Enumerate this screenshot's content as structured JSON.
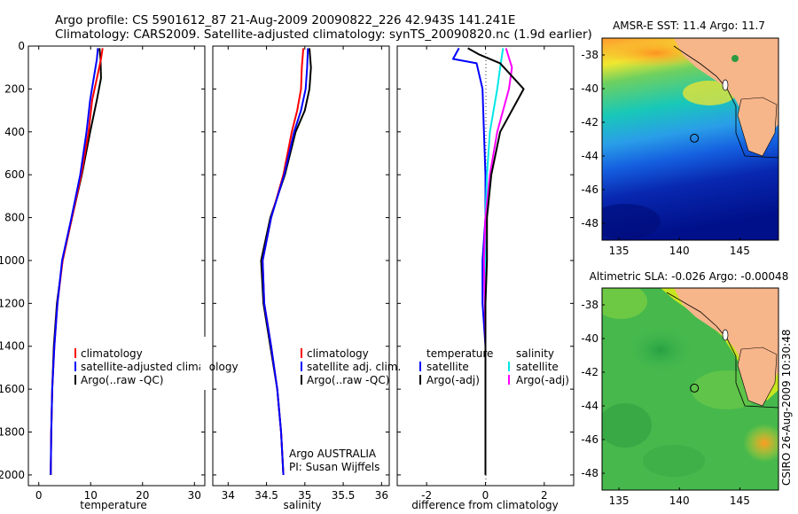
{
  "header": {
    "line1": "Argo profile: CS 5901612_87 21-Aug-2009 20090822_226 42.943S 141.241E",
    "line2": "Climatology: CARS2009. Satellite-adjusted climatology: synTS_20090820.nc (1.9d earlier)"
  },
  "colors": {
    "climatology": "#ff0000",
    "satellite": "#0000ff",
    "argo": "#000000",
    "satellite_diff": "#00e6e6",
    "argo_diff": "#ff00ff",
    "land": "#f7b58a"
  },
  "panels": {
    "temperature": {
      "xlabel": "temperature",
      "legend": [
        "climatology",
        "satellite-adjusted climatology",
        "Argo(..raw -QC)"
      ]
    },
    "salinity": {
      "xlabel": "salinity",
      "legend": [
        "climatology",
        "satellite adj. clim.",
        "Argo(..raw -QC)"
      ],
      "annotation": [
        "Argo AUSTRALIA",
        "PI: Susan Wijffels"
      ]
    },
    "difference": {
      "xlabel": "difference from climatology",
      "legend_left_title": "temperature",
      "legend_left": [
        "satellite",
        "Argo(-adj)"
      ],
      "legend_right_title": "salinity",
      "legend_right": [
        "satellite",
        "Argo(-adj)"
      ]
    }
  },
  "maps": {
    "sst_title": "AMSR-E SST: 11.4 Argo: 11.7",
    "sla_title": "Altimetric SLA: -0.026 Argo: -0.00048",
    "yticks": [
      "-38",
      "-40",
      "-42",
      "-44",
      "-46",
      "-48"
    ],
    "xticks": [
      "135",
      "140",
      "145"
    ],
    "float_position": {
      "lon": 141.241,
      "lat": -42.943
    }
  },
  "credit": "CSIRO 26-Aug-2009 10:30:48",
  "chart_data": [
    {
      "type": "line",
      "title": "",
      "xlabel": "temperature",
      "ylabel": "",
      "xlim": [
        -2,
        32
      ],
      "ylim": [
        2050,
        0
      ],
      "xticks": [
        0,
        10,
        20,
        30
      ],
      "yticks": [
        0,
        200,
        400,
        600,
        800,
        1000,
        1200,
        1400,
        1600,
        1800,
        2000
      ],
      "series": [
        {
          "name": "climatology",
          "points": [
            [
              12.3,
              10
            ],
            [
              12.0,
              60
            ],
            [
              11.2,
              150
            ],
            [
              10.3,
              250
            ],
            [
              9.6,
              400
            ],
            [
              8.2,
              600
            ],
            [
              6.4,
              800
            ],
            [
              4.6,
              1000
            ],
            [
              3.6,
              1200
            ],
            [
              3.0,
              1400
            ],
            [
              2.6,
              1600
            ],
            [
              2.4,
              1800
            ],
            [
              2.3,
              2000
            ]
          ]
        },
        {
          "name": "satellite-adjusted climatology",
          "points": [
            [
              11.4,
              10
            ],
            [
              11.2,
              60
            ],
            [
              10.6,
              150
            ],
            [
              9.9,
              250
            ],
            [
              9.2,
              400
            ],
            [
              8.0,
              600
            ],
            [
              6.3,
              800
            ],
            [
              4.5,
              1000
            ],
            [
              3.6,
              1200
            ],
            [
              3.0,
              1400
            ],
            [
              2.6,
              1600
            ],
            [
              2.4,
              1800
            ],
            [
              2.3,
              2000
            ]
          ]
        },
        {
          "name": "Argo(..raw -QC)",
          "points": [
            [
              11.7,
              10
            ],
            [
              11.9,
              60
            ],
            [
              12.0,
              150
            ],
            [
              11.2,
              250
            ],
            [
              9.9,
              400
            ],
            [
              8.3,
              600
            ],
            [
              6.4,
              800
            ],
            [
              4.6,
              1000
            ],
            [
              3.5,
              1200
            ],
            [
              2.9,
              1400
            ],
            [
              2.6,
              1600
            ],
            [
              2.4,
              1800
            ],
            [
              2.3,
              2000
            ]
          ]
        }
      ]
    },
    {
      "type": "line",
      "title": "",
      "xlabel": "salinity",
      "ylabel": "",
      "xlim": [
        33.8,
        36.1
      ],
      "ylim": [
        2050,
        0
      ],
      "xticks": [
        34,
        34.5,
        35,
        35.5,
        36
      ],
      "yticks": [
        0,
        200,
        400,
        600,
        800,
        1000,
        1200,
        1400,
        1600,
        1800,
        2000
      ],
      "series": [
        {
          "name": "climatology",
          "points": [
            [
              34.98,
              10
            ],
            [
              34.96,
              100
            ],
            [
              34.95,
              200
            ],
            [
              34.9,
              300
            ],
            [
              34.83,
              400
            ],
            [
              34.72,
              600
            ],
            [
              34.56,
              800
            ],
            [
              34.45,
              1000
            ],
            [
              34.47,
              1200
            ],
            [
              34.56,
              1400
            ],
            [
              34.64,
              1600
            ],
            [
              34.69,
              1800
            ],
            [
              34.72,
              2000
            ]
          ]
        },
        {
          "name": "satellite adj. clim.",
          "points": [
            [
              35.04,
              10
            ],
            [
              35.03,
              100
            ],
            [
              35.01,
              200
            ],
            [
              34.95,
              300
            ],
            [
              34.86,
              400
            ],
            [
              34.73,
              600
            ],
            [
              34.56,
              800
            ],
            [
              34.45,
              1000
            ],
            [
              34.47,
              1200
            ],
            [
              34.56,
              1400
            ],
            [
              34.64,
              1600
            ],
            [
              34.69,
              1800
            ],
            [
              34.72,
              2000
            ]
          ]
        },
        {
          "name": "Argo(..raw -QC)",
          "points": [
            [
              35.06,
              10
            ],
            [
              35.08,
              100
            ],
            [
              35.06,
              200
            ],
            [
              35.0,
              300
            ],
            [
              34.88,
              400
            ],
            [
              34.74,
              600
            ],
            [
              34.55,
              800
            ],
            [
              34.43,
              1000
            ],
            [
              34.46,
              1200
            ],
            [
              34.55,
              1400
            ],
            [
              34.64,
              1600
            ],
            [
              34.69,
              1800
            ],
            [
              34.72,
              2000
            ]
          ]
        }
      ]
    },
    {
      "type": "line",
      "title": "",
      "xlabel": "difference from climatology",
      "ylabel": "",
      "xlim": [
        -3,
        3
      ],
      "ylim": [
        2050,
        0
      ],
      "xticks": [
        -2,
        0,
        2
      ],
      "yticks": [
        0,
        200,
        400,
        600,
        800,
        1000,
        1200,
        1400,
        1600,
        1800,
        2000
      ],
      "series": [
        {
          "name": "temperature satellite",
          "points": [
            [
              -0.9,
              10
            ],
            [
              -1.1,
              60
            ],
            [
              -0.3,
              80
            ],
            [
              -0.1,
              200
            ],
            [
              -0.05,
              400
            ],
            [
              0.0,
              600
            ],
            [
              0.0,
              800
            ],
            [
              -0.1,
              1000
            ],
            [
              -0.1,
              1200
            ],
            [
              0.0,
              1400
            ],
            [
              0.0,
              1600
            ],
            [
              0.0,
              1800
            ],
            [
              0.0,
              2000
            ]
          ]
        },
        {
          "name": "temperature Argo(-adj)",
          "points": [
            [
              -0.6,
              10
            ],
            [
              -0.2,
              40
            ],
            [
              0.5,
              80
            ],
            [
              1.3,
              200
            ],
            [
              0.5,
              400
            ],
            [
              0.2,
              600
            ],
            [
              0.05,
              800
            ],
            [
              0.05,
              1000
            ],
            [
              0.0,
              1200
            ],
            [
              0.0,
              1400
            ],
            [
              0.0,
              1600
            ],
            [
              0.0,
              1800
            ],
            [
              0.0,
              2000
            ]
          ]
        },
        {
          "name": "salinity satellite",
          "points": [
            [
              0.6,
              10
            ],
            [
              0.5,
              100
            ],
            [
              0.4,
              200
            ],
            [
              0.15,
              400
            ],
            [
              0.05,
              600
            ],
            [
              0.0,
              800
            ],
            [
              0.0,
              1000
            ],
            [
              0.0,
              1200
            ],
            [
              0.0,
              1400
            ],
            [
              0.0,
              1600
            ],
            [
              0.0,
              1800
            ],
            [
              0.0,
              2000
            ]
          ]
        },
        {
          "name": "salinity Argo(-adj)",
          "points": [
            [
              0.7,
              10
            ],
            [
              0.9,
              100
            ],
            [
              0.8,
              200
            ],
            [
              0.4,
              400
            ],
            [
              0.15,
              600
            ],
            [
              0.0,
              800
            ],
            [
              -0.05,
              1000
            ],
            [
              -0.02,
              1200
            ],
            [
              0.0,
              1400
            ],
            [
              0.0,
              1600
            ],
            [
              0.0,
              1800
            ],
            [
              0.0,
              2000
            ]
          ]
        }
      ]
    }
  ]
}
